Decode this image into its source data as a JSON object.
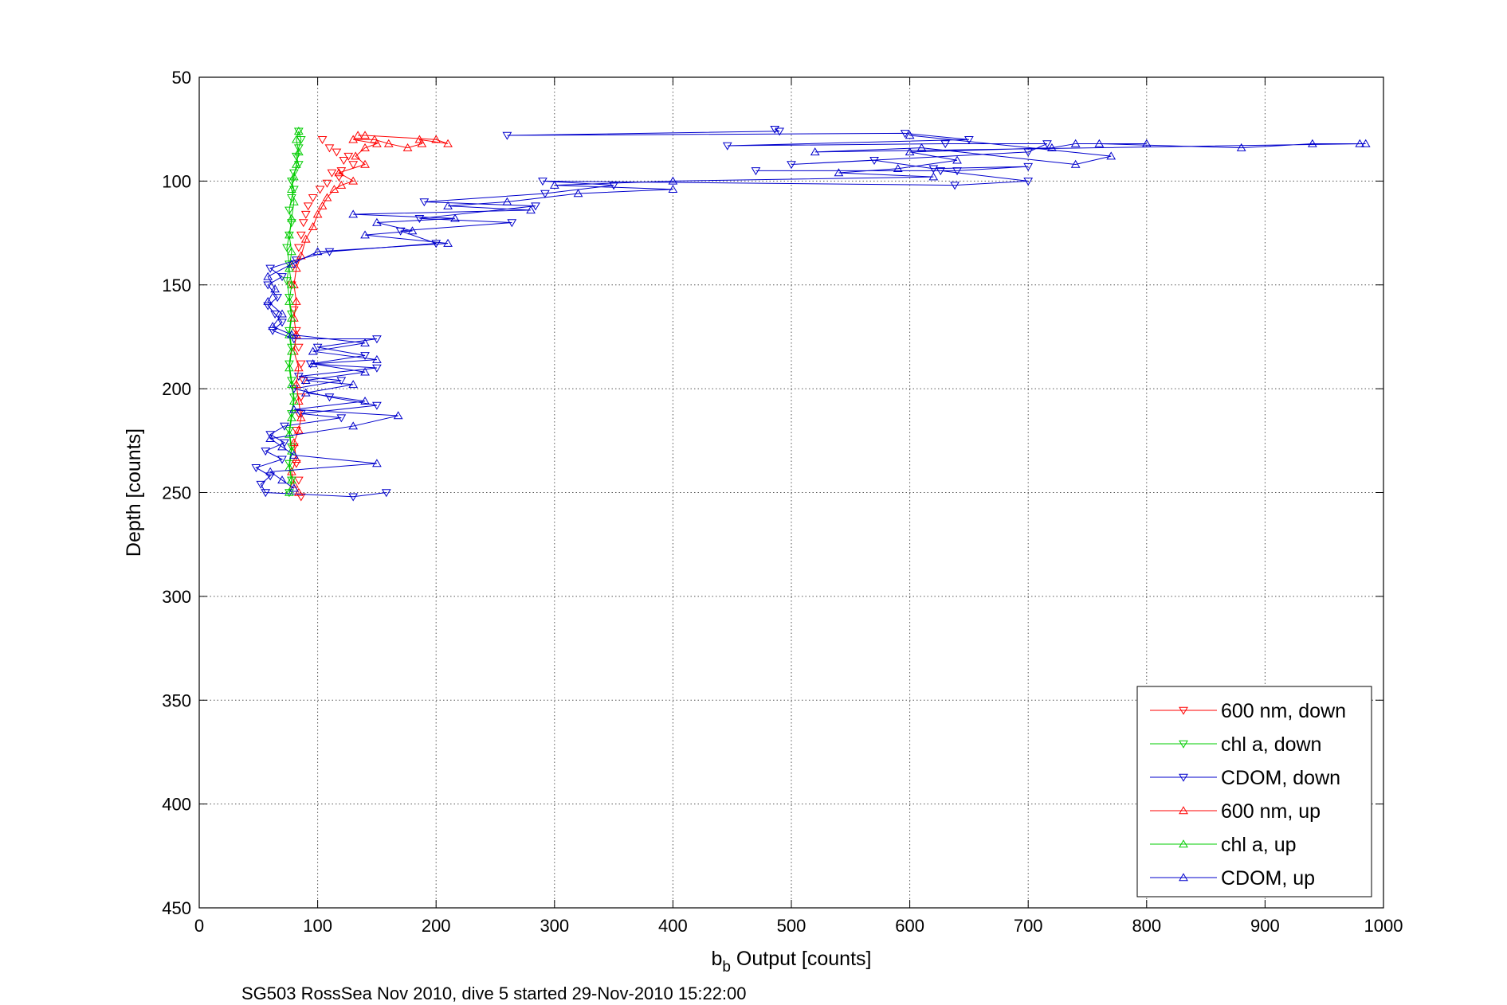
{
  "caption": "SG503 RossSea Nov 2010, dive 5 started 29-Nov-2010 15:22:00",
  "chart_data": {
    "type": "scatter",
    "xlabel_main": "b",
    "xlabel_sub": "b",
    "xlabel_rest": " Output [counts]",
    "ylabel": "Depth [counts]",
    "xlim": [
      0,
      1000
    ],
    "ylim": [
      50,
      450
    ],
    "y_reversed": true,
    "grid": true,
    "legend_position": "bottom-right",
    "xticks": [
      0,
      100,
      200,
      300,
      400,
      500,
      600,
      700,
      800,
      900,
      1000
    ],
    "yticks": [
      50,
      100,
      150,
      200,
      250,
      300,
      350,
      400,
      450
    ],
    "series": [
      {
        "name": "600 nm, down",
        "color": "#ff0000",
        "marker": "down",
        "line": false,
        "points": [
          [
            104,
            80
          ],
          [
            110,
            84
          ],
          [
            116,
            86
          ],
          [
            122,
            90
          ],
          [
            126,
            88
          ],
          [
            130,
            92
          ],
          [
            120,
            95
          ],
          [
            112,
            96
          ],
          [
            118,
            98
          ],
          [
            108,
            101
          ],
          [
            102,
            104
          ],
          [
            96,
            108
          ],
          [
            92,
            112
          ],
          [
            90,
            116
          ],
          [
            88,
            120
          ],
          [
            86,
            126
          ],
          [
            84,
            132
          ],
          [
            80,
            140
          ],
          [
            78,
            150
          ],
          [
            80,
            162
          ],
          [
            82,
            172
          ],
          [
            84,
            180
          ],
          [
            86,
            188
          ],
          [
            88,
            196
          ],
          [
            86,
            204
          ],
          [
            84,
            212
          ],
          [
            82,
            220
          ],
          [
            80,
            228
          ],
          [
            82,
            236
          ],
          [
            84,
            244
          ],
          [
            86,
            252
          ]
        ]
      },
      {
        "name": "chl a, down",
        "color": "#00cc00",
        "marker": "down",
        "line": true,
        "points": [
          [
            84,
            76
          ],
          [
            86,
            80
          ],
          [
            84,
            84
          ],
          [
            82,
            88
          ],
          [
            84,
            92
          ],
          [
            80,
            96
          ],
          [
            78,
            100
          ],
          [
            80,
            104
          ],
          [
            78,
            108
          ],
          [
            76,
            114
          ],
          [
            78,
            120
          ],
          [
            76,
            126
          ],
          [
            74,
            132
          ],
          [
            76,
            140
          ],
          [
            74,
            148
          ],
          [
            76,
            156
          ],
          [
            78,
            164
          ],
          [
            76,
            172
          ],
          [
            78,
            180
          ],
          [
            76,
            188
          ],
          [
            78,
            196
          ],
          [
            80,
            204
          ],
          [
            78,
            212
          ],
          [
            76,
            220
          ],
          [
            78,
            228
          ],
          [
            76,
            236
          ],
          [
            78,
            244
          ],
          [
            76,
            250
          ]
        ]
      },
      {
        "name": "CDOM, down",
        "color": "#0000cc",
        "marker": "down",
        "line": true,
        "points": [
          [
            486,
            75
          ],
          [
            490,
            76
          ],
          [
            260,
            78
          ],
          [
            596,
            77
          ],
          [
            650,
            80
          ],
          [
            446,
            83
          ],
          [
            630,
            82
          ],
          [
            716,
            82
          ],
          [
            700,
            86
          ],
          [
            500,
            92
          ],
          [
            570,
            90
          ],
          [
            620,
            94
          ],
          [
            700,
            93
          ],
          [
            640,
            95
          ],
          [
            470,
            95
          ],
          [
            626,
            95
          ],
          [
            700,
            100
          ],
          [
            638,
            102
          ],
          [
            290,
            100
          ],
          [
            350,
            102
          ],
          [
            292,
            106
          ],
          [
            190,
            110
          ],
          [
            284,
            112
          ],
          [
            186,
            118
          ],
          [
            264,
            120
          ],
          [
            170,
            124
          ],
          [
            200,
            130
          ],
          [
            110,
            134
          ],
          [
            82,
            138
          ],
          [
            60,
            142
          ],
          [
            70,
            146
          ],
          [
            58,
            150
          ],
          [
            66,
            156
          ],
          [
            58,
            160
          ],
          [
            64,
            164
          ],
          [
            70,
            168
          ],
          [
            62,
            172
          ],
          [
            80,
            176
          ],
          [
            150,
            176
          ],
          [
            100,
            180
          ],
          [
            140,
            184
          ],
          [
            94,
            188
          ],
          [
            150,
            190
          ],
          [
            84,
            194
          ],
          [
            120,
            196
          ],
          [
            80,
            200
          ],
          [
            110,
            204
          ],
          [
            150,
            208
          ],
          [
            86,
            212
          ],
          [
            120,
            214
          ],
          [
            72,
            218
          ],
          [
            60,
            222
          ],
          [
            72,
            226
          ],
          [
            56,
            230
          ],
          [
            70,
            234
          ],
          [
            48,
            238
          ],
          [
            60,
            242
          ],
          [
            52,
            246
          ],
          [
            56,
            250
          ],
          [
            130,
            252
          ],
          [
            158,
            250
          ]
        ]
      },
      {
        "name": "600 nm, up",
        "color": "#ff0000",
        "marker": "up",
        "line": true,
        "points": [
          [
            84,
            250
          ],
          [
            80,
            246
          ],
          [
            78,
            240
          ],
          [
            82,
            234
          ],
          [
            80,
            226
          ],
          [
            84,
            220
          ],
          [
            86,
            214
          ],
          [
            84,
            206
          ],
          [
            82,
            198
          ],
          [
            84,
            190
          ],
          [
            80,
            182
          ],
          [
            82,
            174
          ],
          [
            80,
            166
          ],
          [
            82,
            158
          ],
          [
            80,
            150
          ],
          [
            82,
            142
          ],
          [
            86,
            136
          ],
          [
            90,
            128
          ],
          [
            96,
            122
          ],
          [
            100,
            116
          ],
          [
            104,
            112
          ],
          [
            108,
            108
          ],
          [
            114,
            104
          ],
          [
            120,
            102
          ],
          [
            130,
            100
          ],
          [
            118,
            96
          ],
          [
            140,
            92
          ],
          [
            132,
            88
          ],
          [
            140,
            84
          ],
          [
            150,
            82
          ],
          [
            130,
            80
          ],
          [
            148,
            80
          ],
          [
            160,
            82
          ],
          [
            176,
            84
          ],
          [
            188,
            82
          ],
          [
            186,
            80
          ],
          [
            210,
            82
          ],
          [
            200,
            80
          ],
          [
            140,
            78
          ],
          [
            134,
            78
          ]
        ]
      },
      {
        "name": "chl a, up",
        "color": "#00cc00",
        "marker": "up",
        "line": true,
        "points": [
          [
            76,
            250
          ],
          [
            78,
            244
          ],
          [
            76,
            238
          ],
          [
            78,
            230
          ],
          [
            76,
            222
          ],
          [
            78,
            214
          ],
          [
            80,
            206
          ],
          [
            78,
            198
          ],
          [
            76,
            190
          ],
          [
            78,
            182
          ],
          [
            76,
            174
          ],
          [
            78,
            166
          ],
          [
            76,
            158
          ],
          [
            78,
            150
          ],
          [
            76,
            142
          ],
          [
            78,
            134
          ],
          [
            76,
            126
          ],
          [
            78,
            118
          ],
          [
            80,
            110
          ],
          [
            78,
            104
          ],
          [
            80,
            98
          ],
          [
            82,
            92
          ],
          [
            84,
            86
          ],
          [
            82,
            80
          ],
          [
            84,
            76
          ]
        ]
      },
      {
        "name": "CDOM, up",
        "color": "#0000cc",
        "marker": "up",
        "line": true,
        "points": [
          [
            80,
            248
          ],
          [
            70,
            244
          ],
          [
            60,
            240
          ],
          [
            150,
            236
          ],
          [
            80,
            232
          ],
          [
            70,
            228
          ],
          [
            60,
            224
          ],
          [
            130,
            218
          ],
          [
            168,
            213
          ],
          [
            80,
            210
          ],
          [
            140,
            206
          ],
          [
            90,
            202
          ],
          [
            130,
            198
          ],
          [
            90,
            196
          ],
          [
            140,
            192
          ],
          [
            96,
            188
          ],
          [
            150,
            186
          ],
          [
            96,
            182
          ],
          [
            140,
            178
          ],
          [
            78,
            174
          ],
          [
            62,
            170
          ],
          [
            70,
            164
          ],
          [
            58,
            158
          ],
          [
            64,
            152
          ],
          [
            58,
            146
          ],
          [
            78,
            140
          ],
          [
            100,
            134
          ],
          [
            210,
            130
          ],
          [
            140,
            126
          ],
          [
            180,
            124
          ],
          [
            150,
            120
          ],
          [
            216,
            118
          ],
          [
            130,
            116
          ],
          [
            280,
            114
          ],
          [
            210,
            112
          ],
          [
            260,
            110
          ],
          [
            320,
            106
          ],
          [
            400,
            104
          ],
          [
            300,
            102
          ],
          [
            400,
            100
          ],
          [
            620,
            98
          ],
          [
            540,
            96
          ],
          [
            590,
            94
          ],
          [
            640,
            90
          ],
          [
            600,
            86
          ],
          [
            720,
            84
          ],
          [
            740,
            82
          ],
          [
            800,
            82
          ],
          [
            760,
            82
          ],
          [
            880,
            84
          ],
          [
            940,
            82
          ],
          [
            980,
            82
          ],
          [
            985,
            82
          ],
          [
            520,
            86
          ],
          [
            610,
            84
          ],
          [
            740,
            92
          ],
          [
            770,
            88
          ],
          [
            600,
            78
          ]
        ]
      }
    ]
  }
}
